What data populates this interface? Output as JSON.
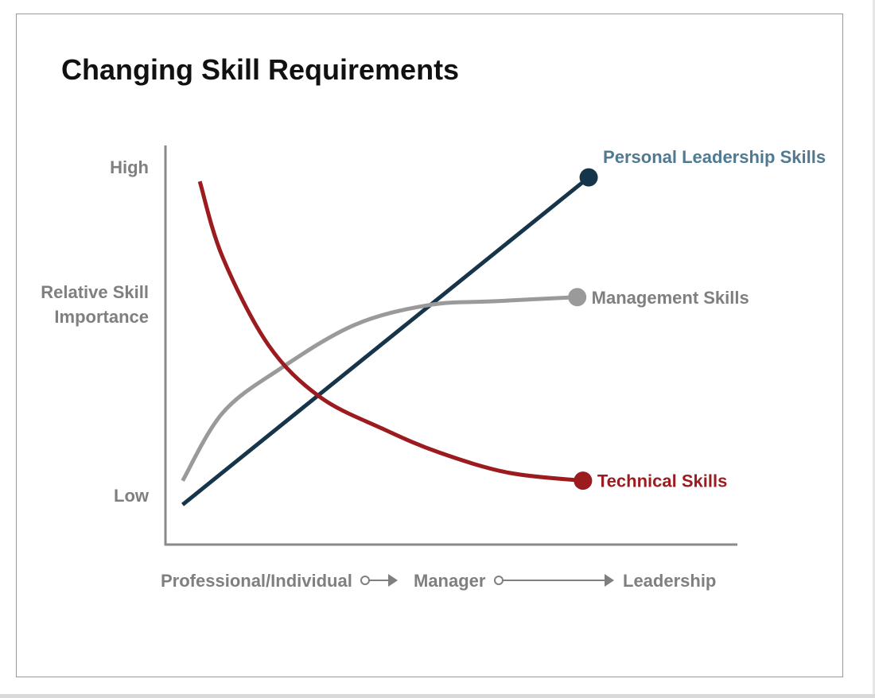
{
  "colors": {
    "technical": "#9b1b1f",
    "management": "#9a9a9a",
    "leadership_line": "#17354a",
    "leadership_label": "#4f7a92",
    "axis": "#8a8a8a",
    "axis_text": "#7f7f7f",
    "title": "#111111"
  },
  "chart_data": {
    "type": "line",
    "title": "Changing Skill Requirements",
    "ylabel": "Relative Skill Importance",
    "y_ticks": {
      "high": "High",
      "low": "Low"
    },
    "x_stages": [
      "Professional/Individual",
      "Manager",
      "Leadership"
    ],
    "xlim": [
      0,
      1
    ],
    "ylim": [
      0,
      1
    ],
    "grid": false,
    "series": [
      {
        "name": "Personal Leadership Skills",
        "color": "#17354a",
        "points": [
          [
            0.03,
            0.1
          ],
          [
            0.74,
            0.92
          ]
        ]
      },
      {
        "name": "Management Skills",
        "color": "#9a9a9a",
        "points": [
          [
            0.03,
            0.16
          ],
          [
            0.1,
            0.33
          ],
          [
            0.2,
            0.44
          ],
          [
            0.33,
            0.55
          ],
          [
            0.46,
            0.6
          ],
          [
            0.58,
            0.61
          ],
          [
            0.72,
            0.62
          ]
        ]
      },
      {
        "name": "Technical Skills",
        "color": "#9b1b1f",
        "points": [
          [
            0.06,
            0.91
          ],
          [
            0.1,
            0.72
          ],
          [
            0.18,
            0.5
          ],
          [
            0.27,
            0.37
          ],
          [
            0.38,
            0.29
          ],
          [
            0.48,
            0.23
          ],
          [
            0.6,
            0.18
          ],
          [
            0.73,
            0.16
          ]
        ]
      }
    ]
  }
}
